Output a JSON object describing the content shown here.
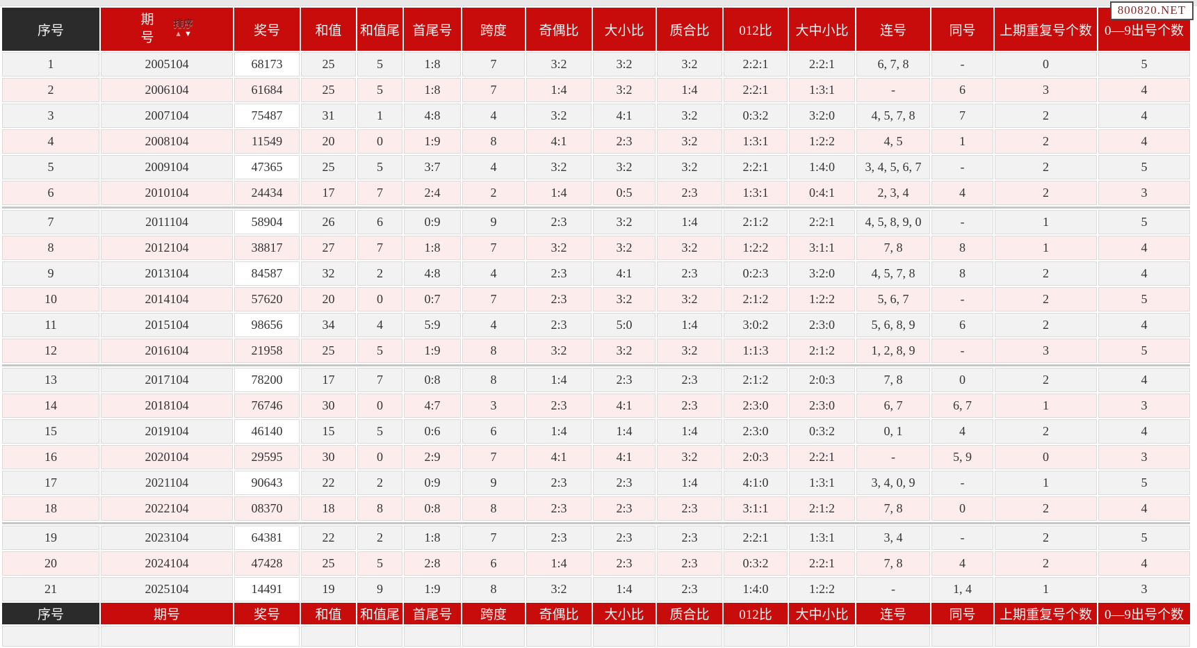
{
  "watermark": "800820.NET",
  "sort": {
    "label": "排序",
    "up_arrow": "▲",
    "down_arrow": "▼"
  },
  "columns": [
    "序号",
    "期号",
    "奖号",
    "和值",
    "和值尾",
    "首尾号",
    "跨度",
    "奇偶比",
    "大小比",
    "质合比",
    "012比",
    "大中小比",
    "连号",
    "同号",
    "上期重复号个数",
    "0—9出号个数"
  ],
  "rows": [
    [
      "1",
      "2005104",
      "68173",
      "25",
      "5",
      "1:8",
      "7",
      "3:2",
      "3:2",
      "3:2",
      "2:2:1",
      "2:2:1",
      "6, 7, 8",
      "-",
      "0",
      "5"
    ],
    [
      "2",
      "2006104",
      "61684",
      "25",
      "5",
      "1:8",
      "7",
      "1:4",
      "3:2",
      "1:4",
      "2:2:1",
      "1:3:1",
      "-",
      "6",
      "3",
      "4"
    ],
    [
      "3",
      "2007104",
      "75487",
      "31",
      "1",
      "4:8",
      "4",
      "3:2",
      "4:1",
      "3:2",
      "0:3:2",
      "3:2:0",
      "4, 5, 7, 8",
      "7",
      "2",
      "4"
    ],
    [
      "4",
      "2008104",
      "11549",
      "20",
      "0",
      "1:9",
      "8",
      "4:1",
      "2:3",
      "3:2",
      "1:3:1",
      "1:2:2",
      "4, 5",
      "1",
      "2",
      "4"
    ],
    [
      "5",
      "2009104",
      "47365",
      "25",
      "5",
      "3:7",
      "4",
      "3:2",
      "3:2",
      "3:2",
      "2:2:1",
      "1:4:0",
      "3, 4, 5, 6, 7",
      "-",
      "2",
      "5"
    ],
    [
      "6",
      "2010104",
      "24434",
      "17",
      "7",
      "2:4",
      "2",
      "1:4",
      "0:5",
      "2:3",
      "1:3:1",
      "0:4:1",
      "2, 3, 4",
      "4",
      "2",
      "3"
    ],
    [
      "7",
      "2011104",
      "58904",
      "26",
      "6",
      "0:9",
      "9",
      "2:3",
      "3:2",
      "1:4",
      "2:1:2",
      "2:2:1",
      "4, 5, 8, 9, 0",
      "-",
      "1",
      "5"
    ],
    [
      "8",
      "2012104",
      "38817",
      "27",
      "7",
      "1:8",
      "7",
      "3:2",
      "3:2",
      "3:2",
      "1:2:2",
      "3:1:1",
      "7, 8",
      "8",
      "1",
      "4"
    ],
    [
      "9",
      "2013104",
      "84587",
      "32",
      "2",
      "4:8",
      "4",
      "2:3",
      "4:1",
      "2:3",
      "0:2:3",
      "3:2:0",
      "4, 5, 7, 8",
      "8",
      "2",
      "4"
    ],
    [
      "10",
      "2014104",
      "57620",
      "20",
      "0",
      "0:7",
      "7",
      "2:3",
      "3:2",
      "3:2",
      "2:1:2",
      "1:2:2",
      "5, 6, 7",
      "-",
      "2",
      "5"
    ],
    [
      "11",
      "2015104",
      "98656",
      "34",
      "4",
      "5:9",
      "4",
      "2:3",
      "5:0",
      "1:4",
      "3:0:2",
      "2:3:0",
      "5, 6, 8, 9",
      "6",
      "2",
      "4"
    ],
    [
      "12",
      "2016104",
      "21958",
      "25",
      "5",
      "1:9",
      "8",
      "3:2",
      "3:2",
      "3:2",
      "1:1:3",
      "2:1:2",
      "1, 2, 8, 9",
      "-",
      "3",
      "5"
    ],
    [
      "13",
      "2017104",
      "78200",
      "17",
      "7",
      "0:8",
      "8",
      "1:4",
      "2:3",
      "2:3",
      "2:1:2",
      "2:0:3",
      "7, 8",
      "0",
      "2",
      "4"
    ],
    [
      "14",
      "2018104",
      "76746",
      "30",
      "0",
      "4:7",
      "3",
      "2:3",
      "4:1",
      "2:3",
      "2:3:0",
      "2:3:0",
      "6, 7",
      "6, 7",
      "1",
      "3"
    ],
    [
      "15",
      "2019104",
      "46140",
      "15",
      "5",
      "0:6",
      "6",
      "1:4",
      "1:4",
      "1:4",
      "2:3:0",
      "0:3:2",
      "0, 1",
      "4",
      "2",
      "4"
    ],
    [
      "16",
      "2020104",
      "29595",
      "30",
      "0",
      "2:9",
      "7",
      "4:1",
      "4:1",
      "3:2",
      "2:0:3",
      "2:2:1",
      "-",
      "5, 9",
      "0",
      "3"
    ],
    [
      "17",
      "2021104",
      "90643",
      "22",
      "2",
      "0:9",
      "9",
      "2:3",
      "2:3",
      "1:4",
      "4:1:0",
      "1:3:1",
      "3, 4, 0, 9",
      "-",
      "1",
      "5"
    ],
    [
      "18",
      "2022104",
      "08370",
      "18",
      "8",
      "0:8",
      "8",
      "2:3",
      "2:3",
      "2:3",
      "3:1:1",
      "2:1:2",
      "7, 8",
      "0",
      "2",
      "4"
    ],
    [
      "19",
      "2023104",
      "64381",
      "22",
      "2",
      "1:8",
      "7",
      "2:3",
      "2:3",
      "2:3",
      "2:2:1",
      "1:3:1",
      "3, 4",
      "-",
      "2",
      "5"
    ],
    [
      "20",
      "2024104",
      "47428",
      "25",
      "5",
      "2:8",
      "6",
      "1:4",
      "2:3",
      "2:3",
      "0:3:2",
      "2:2:1",
      "7, 8",
      "4",
      "2",
      "4"
    ],
    [
      "21",
      "2025104",
      "14491",
      "19",
      "9",
      "1:9",
      "8",
      "3:2",
      "1:4",
      "2:3",
      "1:4:0",
      "1:2:2",
      "-",
      "1, 4",
      "1",
      "3"
    ]
  ],
  "group_breaks_after_rows": [
    6,
    12,
    18
  ],
  "colors": {
    "header_red": "#c80b0b",
    "header_dark": "#2b2b2b",
    "row_gray": "#f2f2f2",
    "row_pink": "#fcecec",
    "prize_cell": "#ffffff",
    "group_separator": "#c6c6c6",
    "watermark_text": "#8b2a2a"
  }
}
